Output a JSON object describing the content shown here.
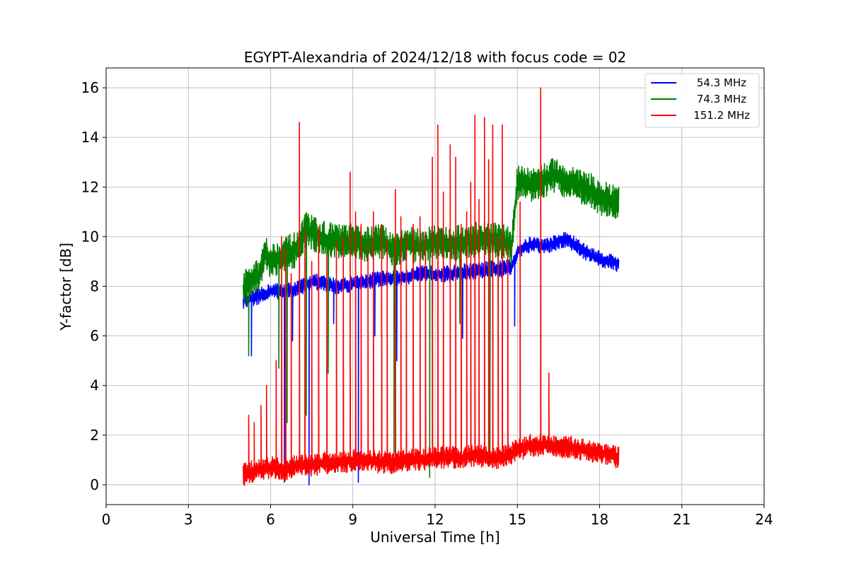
{
  "chart_data": {
    "type": "line",
    "title": "EGYPT-Alexandria of 2024/12/18 with focus code = 02",
    "xlabel": "Universal Time [h]",
    "ylabel": "Y-factor [dB]",
    "xlim": [
      0,
      24
    ],
    "ylim": [
      -0.8,
      16.8
    ],
    "xticks": [
      0,
      3,
      6,
      9,
      12,
      15,
      18,
      21,
      24
    ],
    "yticks": [
      0,
      2,
      4,
      6,
      8,
      10,
      12,
      14,
      16
    ],
    "grid": true,
    "legend_position": "top-right",
    "series": [
      {
        "name": "54.3 MHz",
        "color": "#0000ff",
        "x": [
          5.0,
          5.3,
          5.6,
          6.0,
          6.5,
          7.0,
          7.5,
          8.0,
          8.5,
          9.0,
          9.5,
          10.0,
          10.5,
          11.0,
          11.5,
          12.0,
          12.5,
          13.0,
          13.5,
          14.0,
          14.5,
          14.8,
          15.0,
          15.5,
          16.0,
          16.5,
          16.8,
          17.2,
          17.6,
          18.0,
          18.4,
          18.7
        ],
        "y": [
          7.4,
          7.5,
          7.6,
          7.8,
          7.8,
          7.9,
          8.2,
          8.1,
          8.0,
          8.1,
          8.2,
          8.3,
          8.3,
          8.4,
          8.5,
          8.5,
          8.5,
          8.6,
          8.6,
          8.7,
          8.7,
          8.8,
          9.4,
          9.7,
          9.6,
          9.8,
          9.9,
          9.6,
          9.3,
          9.1,
          9.0,
          8.9
        ]
      },
      {
        "name": "74.3 MHz",
        "color": "#008000",
        "x": [
          5.0,
          5.3,
          5.6,
          5.8,
          6.0,
          6.5,
          7.0,
          7.3,
          7.6,
          8.0,
          8.5,
          9.0,
          9.5,
          10.0,
          10.5,
          11.0,
          11.5,
          12.0,
          12.5,
          13.0,
          13.5,
          14.0,
          14.5,
          14.8,
          15.0,
          15.5,
          16.0,
          16.4,
          16.8,
          17.2,
          17.6,
          18.0,
          18.4,
          18.7
        ],
        "y": [
          7.9,
          8.2,
          8.4,
          9.5,
          9.0,
          9.3,
          9.5,
          10.3,
          10.1,
          9.9,
          9.8,
          9.8,
          9.7,
          9.8,
          9.5,
          9.7,
          9.6,
          9.8,
          9.7,
          9.8,
          9.9,
          9.9,
          9.8,
          9.6,
          12.2,
          12.1,
          12.3,
          12.5,
          12.2,
          12.1,
          11.9,
          11.6,
          11.4,
          11.3
        ]
      },
      {
        "name": "151.2 MHz",
        "color": "#ff0000",
        "x": [
          5.0,
          5.5,
          6.0,
          6.5,
          7.0,
          7.5,
          8.0,
          8.5,
          9.0,
          9.5,
          10.0,
          10.5,
          11.0,
          11.5,
          12.0,
          12.5,
          13.0,
          13.5,
          14.0,
          14.5,
          15.0,
          15.5,
          16.0,
          16.5,
          17.0,
          17.5,
          18.0,
          18.4,
          18.7
        ],
        "y": [
          0.4,
          0.6,
          0.7,
          0.6,
          0.8,
          0.8,
          0.9,
          0.9,
          1.0,
          1.0,
          0.9,
          0.9,
          1.0,
          1.0,
          1.1,
          1.1,
          1.1,
          1.2,
          1.1,
          1.1,
          1.4,
          1.6,
          1.6,
          1.5,
          1.5,
          1.4,
          1.3,
          1.2,
          1.1
        ]
      }
    ],
    "spikes": [
      {
        "series": "151.2 MHz",
        "x": [
          5.2,
          5.4,
          5.65,
          5.85,
          6.2,
          6.4,
          6.55,
          6.75,
          7.05,
          7.25,
          7.5,
          7.75,
          8.05,
          8.4,
          8.65,
          8.9,
          9.1,
          9.3,
          9.55,
          9.75,
          10.05,
          10.25,
          10.55,
          10.75,
          10.95,
          11.2,
          11.45,
          11.65,
          11.9,
          12.1,
          12.3,
          12.55,
          12.75,
          12.95,
          13.15,
          13.3,
          13.45,
          13.6,
          13.8,
          13.95,
          14.1,
          14.3,
          14.45,
          14.65,
          15.1,
          15.85,
          16.15
        ],
        "y": [
          2.8,
          2.5,
          3.2,
          4.0,
          5.0,
          10.0,
          9.5,
          8.5,
          14.6,
          10.2,
          9.0,
          10.4,
          9.3,
          9.8,
          10.0,
          12.6,
          11.0,
          10.5,
          9.7,
          11.0,
          10.5,
          9.9,
          11.9,
          10.8,
          10.1,
          10.5,
          10.8,
          10.2,
          13.2,
          14.5,
          11.8,
          13.7,
          13.2,
          10.5,
          11.0,
          12.2,
          14.9,
          11.5,
          14.8,
          13.1,
          14.5,
          10.0,
          14.5,
          9.7,
          11.4,
          16.0,
          4.5
        ]
      },
      {
        "series": "74.3 MHz",
        "x": [
          5.2,
          6.3,
          6.6,
          7.3,
          8.1,
          10.5,
          11.8,
          12.9,
          14.0,
          14.3
        ],
        "y": [
          5.2,
          4.7,
          2.5,
          2.8,
          4.5,
          1.3,
          0.3,
          6.5,
          1.0,
          3.0
        ]
      },
      {
        "series": "54.3 MHz",
        "x": [
          5.3,
          6.5,
          6.8,
          7.4,
          8.3,
          9.2,
          9.8,
          10.6,
          11.9,
          13.0,
          14.9
        ],
        "y": [
          5.2,
          0.1,
          5.8,
          0.0,
          6.5,
          0.1,
          6.0,
          5.0,
          6.1,
          5.9,
          6.4
        ]
      }
    ]
  }
}
